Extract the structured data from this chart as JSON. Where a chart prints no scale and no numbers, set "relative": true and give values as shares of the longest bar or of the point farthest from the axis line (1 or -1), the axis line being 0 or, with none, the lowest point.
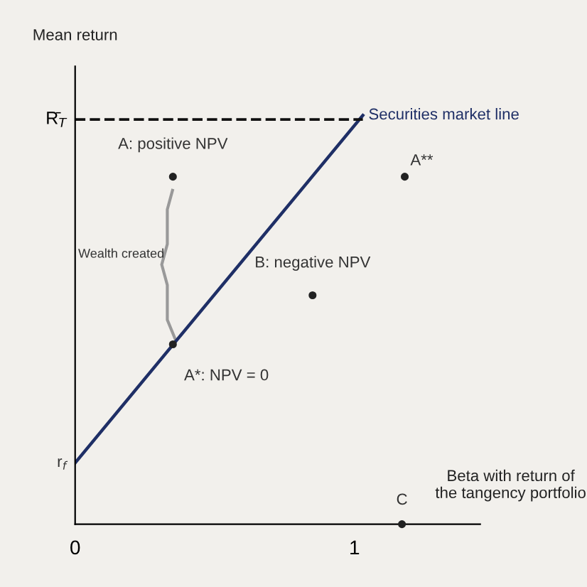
{
  "chart_data": {
    "type": "line",
    "relative": true,
    "xlabel": "Beta with return of the tangency portfolio",
    "ylabel": "Mean return",
    "xlim": [
      0,
      1.45
    ],
    "xticks": [
      0,
      1
    ],
    "series": [
      {
        "name": "Securities market line",
        "color": "#1f2f66",
        "x": [
          0,
          1.03
        ],
        "values": [
          0.15,
          1.0
        ]
      },
      {
        "type": "scatter",
        "marker": "circle",
        "color": "#222222",
        "x": [
          0.35,
          0.35,
          0.85,
          1.18,
          1.17
        ],
        "values": [
          0.85,
          0.44,
          0.56,
          0.85,
          0
        ]
      }
    ],
    "ref_lines": [
      {
        "axis": "y",
        "value": 0.99,
        "label": "R̄$_{T}$",
        "line_style": "dashed",
        "color": "#111111"
      }
    ],
    "annotations": [
      {
        "text": "r$_{f}$",
        "x": 0,
        "y": 0.15
      },
      {
        "text": "A: positive NPV",
        "x": 0.35,
        "y": 0.85
      },
      {
        "text": "A*: NPV = 0",
        "x": 0.35,
        "y": 0.44
      },
      {
        "text": "B: negative NPV",
        "x": 0.85,
        "y": 0.56
      },
      {
        "text": "A**",
        "x": 1.18,
        "y": 0.85
      },
      {
        "text": "C",
        "x": 1.17,
        "y": 0
      },
      "Wealth created"
    ]
  }
}
